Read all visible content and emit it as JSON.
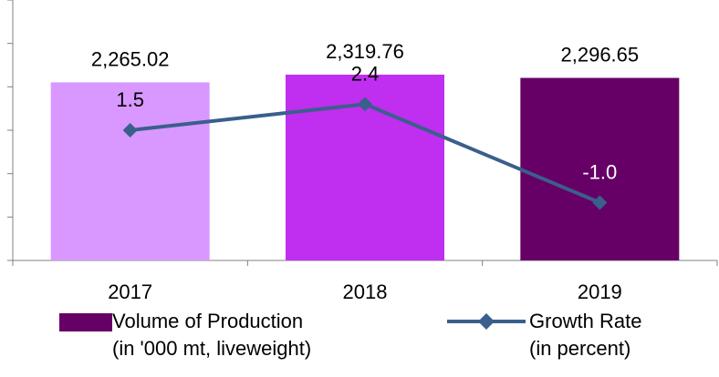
{
  "chart_data": {
    "type": "bar",
    "categories": [
      "2017",
      "2018",
      "2019"
    ],
    "series": [
      {
        "name": "Volume of Production (in '000 mt, liveweight)",
        "kind": "bar",
        "values": [
          2265.02,
          2319.76,
          2296.65
        ],
        "value_labels": [
          "2,265.02",
          "2,319.76",
          "2,296.65"
        ],
        "colors": [
          "#d898ff",
          "#c02ef0",
          "#660066"
        ]
      },
      {
        "name": "Growth Rate (in percent)",
        "kind": "line",
        "values": [
          1.5,
          2.4,
          -1.0
        ],
        "value_labels": [
          "1.5",
          "2.4",
          "-1.0"
        ],
        "color": "#3a5f8c"
      }
    ],
    "grid": false,
    "legend_position": "bottom"
  },
  "legend": {
    "bar_line1": "Volume of Production",
    "bar_line2": "(in '000 mt, liveweight)",
    "line_line1": "Growth Rate",
    "line_line2": "(in percent)"
  }
}
